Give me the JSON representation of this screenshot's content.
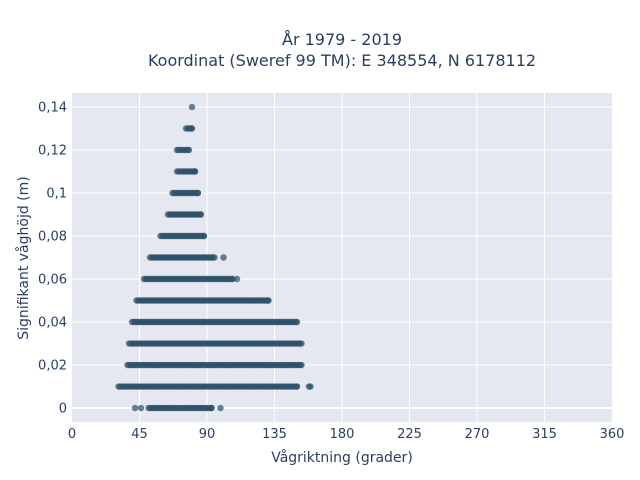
{
  "chart_data": {
    "type": "scatter",
    "title_lines": [
      "År 1979 - 2019",
      "Koordinat (Sweref 99 TM): E 348554, N 6178112"
    ],
    "xlabel": "Vågriktning (grader)",
    "ylabel": "Signifikant våghöjd (m)",
    "xlim": [
      0,
      360
    ],
    "ylim": [
      -0.0065,
      0.1465
    ],
    "x_ticks": [
      0,
      45,
      90,
      135,
      180,
      225,
      270,
      315,
      360
    ],
    "x_tick_labels": [
      "0",
      "45",
      "90",
      "135",
      "180",
      "225",
      "270",
      "315",
      "360"
    ],
    "y_ticks": [
      0,
      0.02,
      0.04,
      0.06,
      0.08,
      0.1,
      0.12,
      0.14
    ],
    "y_tick_labels": [
      "0",
      "0,02",
      "0,04",
      "0,06",
      "0,08",
      "0,1",
      "0,12",
      "0,14"
    ],
    "grid": true,
    "marker_color": "#2c5069",
    "plot_background": "#e5e8f0",
    "series": [
      {
        "values_description_y": "wave height level",
        "bands": [
          {
            "y": 0.0,
            "x_min": 51,
            "x_max": 93,
            "outliers": [
              42,
              46,
              99
            ]
          },
          {
            "y": 0.01,
            "x_min": 31,
            "x_max": 150,
            "outliers": [
              158,
              159
            ]
          },
          {
            "y": 0.02,
            "x_min": 37,
            "x_max": 153,
            "outliers": []
          },
          {
            "y": 0.03,
            "x_min": 38,
            "x_max": 153,
            "outliers": []
          },
          {
            "y": 0.04,
            "x_min": 40,
            "x_max": 150,
            "outliers": []
          },
          {
            "y": 0.05,
            "x_min": 43,
            "x_max": 131,
            "outliers": []
          },
          {
            "y": 0.06,
            "x_min": 48,
            "x_max": 107,
            "outliers": [
              110
            ]
          },
          {
            "y": 0.07,
            "x_min": 52,
            "x_max": 95,
            "outliers": [
              101
            ]
          },
          {
            "y": 0.08,
            "x_min": 59,
            "x_max": 88,
            "outliers": []
          },
          {
            "y": 0.09,
            "x_min": 64,
            "x_max": 86,
            "outliers": []
          },
          {
            "y": 0.1,
            "x_min": 67,
            "x_max": 84,
            "outliers": []
          },
          {
            "y": 0.11,
            "x_min": 70,
            "x_max": 82,
            "outliers": []
          },
          {
            "y": 0.12,
            "x_min": 70,
            "x_max": 78,
            "outliers": []
          },
          {
            "y": 0.13,
            "x_min": 76,
            "x_max": 80,
            "outliers": []
          },
          {
            "y": 0.14,
            "x_min": 80,
            "x_max": 80,
            "outliers": []
          }
        ]
      }
    ]
  }
}
